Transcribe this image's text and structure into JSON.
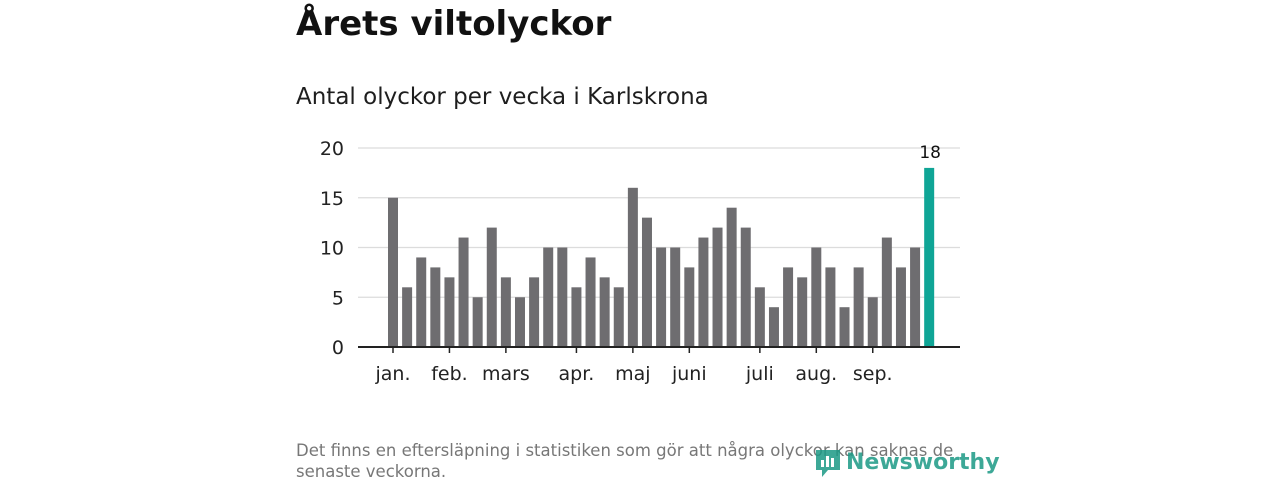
{
  "header": {
    "title": "Årets viltolyckor"
  },
  "chart_data": {
    "type": "bar",
    "title": "Antal olyckor per vecka i Karlskrona",
    "xlabel": "",
    "ylabel": "",
    "ylim": [
      0,
      20
    ],
    "yticks": [
      0,
      5,
      10,
      15,
      20
    ],
    "month_labels": [
      {
        "label": "jan.",
        "week": 1
      },
      {
        "label": "feb.",
        "week": 5
      },
      {
        "label": "mars",
        "week": 9
      },
      {
        "label": "apr.",
        "week": 14
      },
      {
        "label": "maj",
        "week": 18
      },
      {
        "label": "juni",
        "week": 22
      },
      {
        "label": "juli",
        "week": 27
      },
      {
        "label": "aug.",
        "week": 31
      },
      {
        "label": "sep.",
        "week": 35
      }
    ],
    "weeks": [
      1,
      2,
      3,
      4,
      5,
      6,
      7,
      8,
      9,
      10,
      11,
      12,
      13,
      14,
      15,
      16,
      17,
      18,
      19,
      20,
      21,
      22,
      23,
      24,
      25,
      26,
      27,
      28,
      29,
      30,
      31,
      32,
      33,
      34,
      35,
      36,
      37,
      38,
      39
    ],
    "values": [
      15,
      6,
      9,
      8,
      7,
      11,
      5,
      12,
      7,
      5,
      7,
      10,
      10,
      6,
      9,
      7,
      6,
      16,
      13,
      10,
      10,
      8,
      11,
      12,
      14,
      12,
      6,
      4,
      8,
      7,
      10,
      8,
      4,
      8,
      5,
      11,
      8,
      10,
      18
    ],
    "highlight_index": 38,
    "highlight_label": "18",
    "bar_color": "#6e6d70",
    "highlight_color": "#0fa596",
    "grid": true
  },
  "footer": {
    "note": "Det finns en eftersläpning i statistiken som gör att några olyckor kan saknas de senaste veckorna.",
    "brand": "Newsworthy",
    "brand_color": "#1c9a86"
  }
}
